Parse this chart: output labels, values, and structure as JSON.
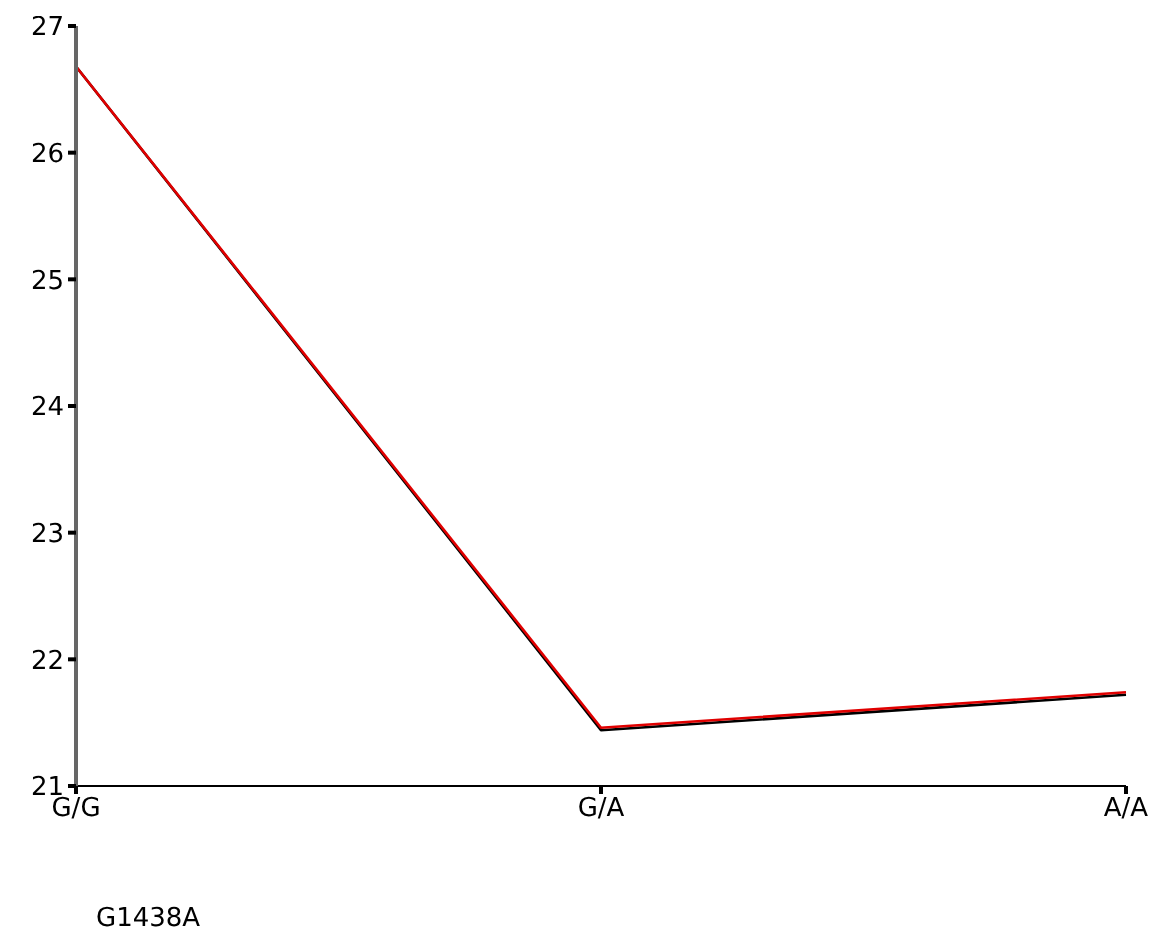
{
  "chart_data": {
    "type": "line",
    "xlabel": "G1438A",
    "categories": [
      "G/G",
      "G/A",
      "A/A"
    ],
    "series": [
      {
        "color": "#000000",
        "values": [
          26.68,
          21.44,
          21.72
        ]
      },
      {
        "color": "#e00000",
        "values": [
          26.68,
          21.46,
          21.74
        ]
      }
    ],
    "ylim": [
      21,
      27
    ],
    "yticks": [
      21,
      22,
      23,
      24,
      25,
      26,
      27
    ],
    "grid": false,
    "legend": false,
    "marker": "none",
    "line_style": "solid"
  }
}
